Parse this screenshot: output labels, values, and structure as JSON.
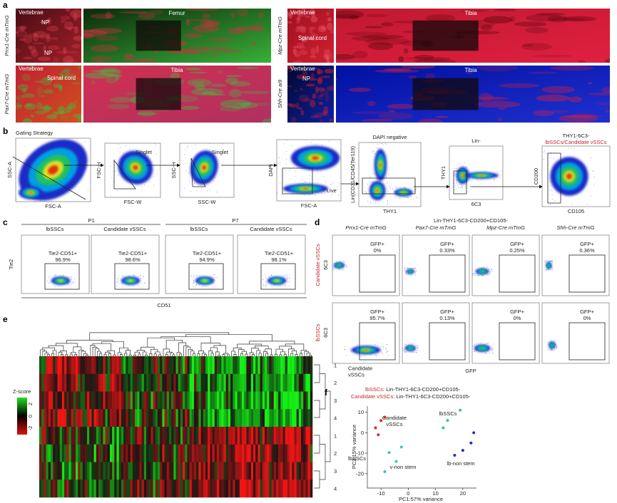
{
  "panel_labels": [
    "a",
    "b",
    "c",
    "d",
    "e",
    "f"
  ],
  "panel_a": {
    "rows": [
      {
        "genotype": "Prrx1-Cre mTmG",
        "spine_labels": [
          "Vertebrae",
          "NP",
          "NP"
        ],
        "bone": "Femur"
      },
      {
        "genotype": "Pax7-Cre mTmG",
        "spine_labels": [
          "Vertebrae",
          "Spinal cord"
        ],
        "bone": "Tibia"
      },
      {
        "genotype": "Mpz-Cre mTmG",
        "spine_labels": [
          "Vertebrae",
          "Spinal cord"
        ],
        "bone": "Tibia"
      },
      {
        "genotype": "Shh-Cre ai9",
        "spine_labels": [
          "Vertebrae",
          "NP"
        ],
        "bone": "Tibia"
      }
    ]
  },
  "panel_b": {
    "title": "Gating Strategy",
    "plots": [
      {
        "x_label": "FSC-A",
        "y_label": "SSC-A"
      },
      {
        "x_label": "FSC-W",
        "y_label": "FSC-H",
        "gate": "Singlet"
      },
      {
        "x_label": "SSC-W",
        "y_label": "SSC-H",
        "gate": "Singlet"
      },
      {
        "x_label": "FSC-A",
        "y_label": "DAPI",
        "gate": "Live"
      },
      {
        "title": "DAPI negative",
        "x_label": "THY1",
        "y_label": "Lin(CD31/CD45/Ter119)"
      },
      {
        "title": "Lin-",
        "x_label": "6C3",
        "y_label": "THY1"
      },
      {
        "title": "THY1-6C3-",
        "subtitle": "lbSSCs/Candidate vSSCs",
        "x_label": "CD105",
        "y_label": "CD200"
      }
    ]
  },
  "panel_c": {
    "groups": [
      "P1",
      "P7"
    ],
    "gate": "Tie2-CD51+",
    "y_label": "Tie2",
    "x_label": "CD51",
    "plots": [
      {
        "title": "lbSSCs",
        "value": "96.9%"
      },
      {
        "title": "Candidate vSSCs",
        "value": "98.6%"
      },
      {
        "title": "lbSSCs",
        "value": "94.9%"
      },
      {
        "title": "Candidate vSSCs",
        "value": "98.1%"
      }
    ]
  },
  "panel_d": {
    "title": "Lin-THY1-6C3-CD200+CD105-",
    "gate": "GFP+",
    "y_label": "6C3",
    "x_label": "GFP",
    "columns": [
      "Prrx1-Cre mTmG",
      "Pax7-Cre mTmG",
      "Mpz-Cre mTmG",
      "Shh-Cre mTmG"
    ],
    "rows": [
      {
        "label": "Candidate vSSCs",
        "values": [
          "0%",
          "0.33%",
          "0.25%",
          "0.36%"
        ]
      },
      {
        "label": "lbSSCs",
        "values": [
          "95.7%",
          "0.13%",
          "0%",
          "0%"
        ]
      }
    ]
  },
  "panel_e": {
    "legend_title": "Z-score",
    "legend_ticks": [
      2,
      0,
      -2
    ],
    "groups": [
      {
        "lines": [
          "Candidate",
          "vSSCs"
        ],
        "rows": [
          "1",
          "2",
          "3",
          "4"
        ]
      },
      {
        "lines": [
          "lbSSCs"
        ],
        "rows": [
          "1",
          "2",
          "3",
          "4"
        ]
      }
    ]
  },
  "panel_f": {
    "legend": [
      {
        "name": "lbSSCs",
        "text": ": Lin-THY1-6C3-CD200+CD105-"
      },
      {
        "name": "Candidate vSSCs",
        "text": ": Lin-THY1-6C3-CD200+CD105-"
      }
    ],
    "x_label": "PC1:57% variance",
    "y_label": "PC2:15% variance",
    "xlim": [
      -15,
      25
    ],
    "ylim": [
      -27,
      13
    ],
    "xticks": [
      -10,
      0,
      10,
      20
    ],
    "yticks": [
      10,
      0,
      -10,
      -20
    ],
    "groups": [
      {
        "lines": [
          "Candidate",
          "vSSCs"
        ],
        "color": "#d03030",
        "x": [
          -10,
          -12,
          -11,
          -8.6
        ],
        "y": [
          5.9,
          2.4,
          -1,
          7.6
        ]
      },
      {
        "lines": [
          "lbSSCs"
        ],
        "color": "#30d070",
        "x": [
          14.4,
          19,
          12.8
        ],
        "y": [
          6,
          11,
          2.4
        ]
      },
      {
        "lines": [
          "v-non stem"
        ],
        "color": "#30c8c8",
        "x": [
          -7,
          -2.5,
          -4.4,
          -8.6
        ],
        "y": [
          -9.7,
          -7,
          -14,
          -19
        ]
      },
      {
        "lines": [
          "lb-non stem"
        ],
        "color": "#2030c0",
        "x": [
          24,
          17,
          23,
          20
        ],
        "y": [
          0,
          -11,
          -5,
          -8.6
        ]
      }
    ]
  }
}
